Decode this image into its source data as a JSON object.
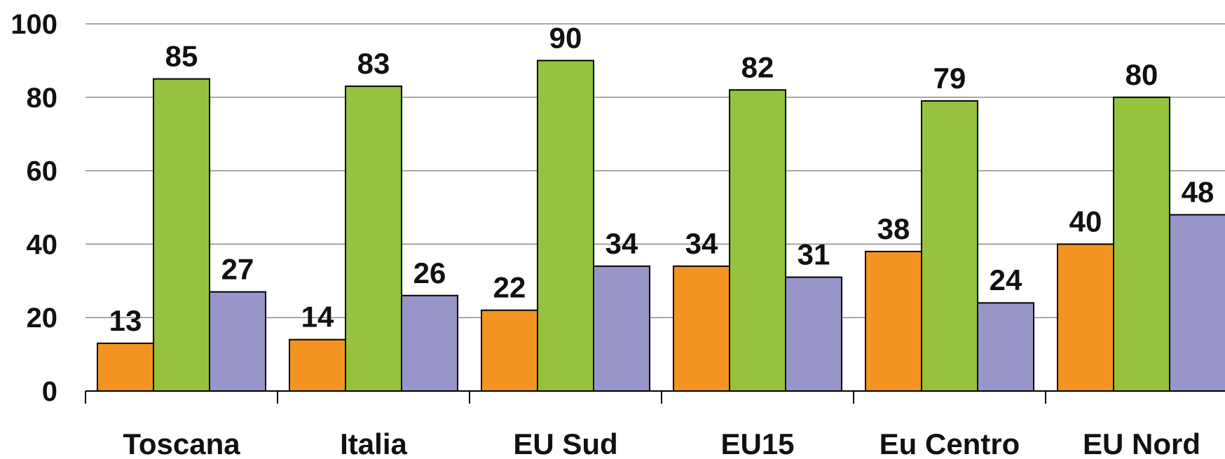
{
  "chart_data": {
    "type": "bar",
    "categories": [
      "Toscana",
      "Italia",
      "EU Sud",
      "EU15",
      "Eu Centro",
      "EU Nord"
    ],
    "series": [
      {
        "values": [
          13,
          14,
          22,
          34,
          38,
          40
        ],
        "color": "#F39320"
      },
      {
        "values": [
          85,
          83,
          90,
          82,
          79,
          80
        ],
        "color": "#95C33D"
      },
      {
        "values": [
          27,
          26,
          34,
          31,
          24,
          48
        ],
        "color": "#9896C9"
      }
    ],
    "yticks": [
      "0",
      "20",
      "40",
      "60",
      "80",
      "100"
    ],
    "ylim": [
      0,
      100
    ],
    "grid": true,
    "legend": "none"
  }
}
